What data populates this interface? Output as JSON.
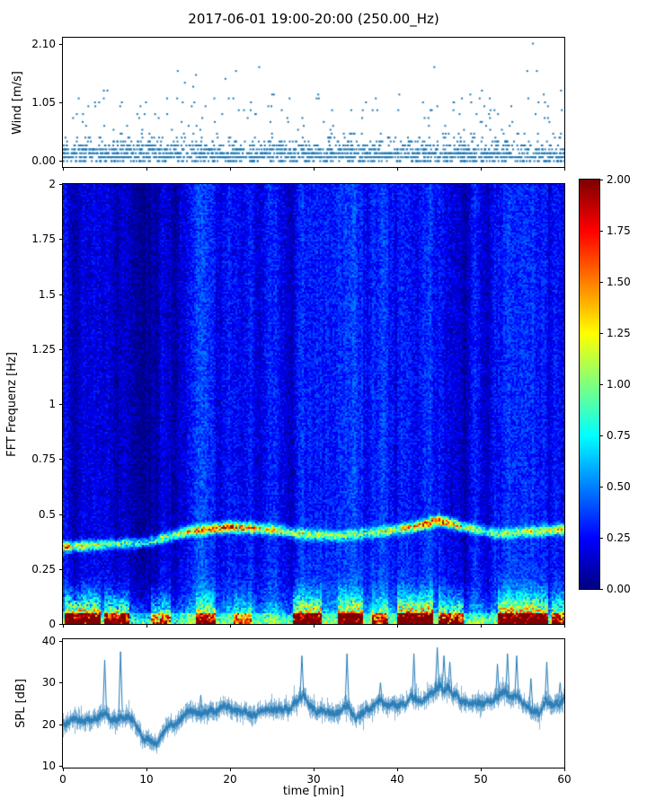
{
  "title": "2017-06-01 19:00-20:00 (250.00_Hz)",
  "colors": {
    "series": "#1f77b4",
    "axis": "#000000",
    "background": "#ffffff"
  },
  "chart_data": [
    {
      "type": "scatter",
      "id": "wind",
      "ylabel": "Wind [m/s]",
      "yticks": [
        0.0,
        1.05,
        2.1
      ],
      "ytick_labels": [
        "0.00",
        "1.05",
        "2.10"
      ],
      "ylim": [
        -0.105,
        2.205
      ],
      "xlim": [
        0,
        60
      ],
      "marker_color": "#1f77b4",
      "n_points": 2000,
      "quantum": 0.07,
      "seed": 7
    },
    {
      "type": "heatmap",
      "id": "spectrogram",
      "ylabel": "FFT Frequenz [Hz]",
      "yticks": [
        0,
        0.25,
        0.5,
        0.75,
        1,
        1.25,
        1.5,
        1.75,
        2
      ],
      "ytick_labels": [
        "0",
        "0.25",
        "0.5",
        "0.75",
        "1",
        "1.25",
        "1.5",
        "1.75",
        "2"
      ],
      "ylim": [
        0,
        2
      ],
      "xlim": [
        0,
        60
      ],
      "clim": [
        0,
        2
      ],
      "colormap": "jet",
      "seed": 13,
      "grid": {
        "nx": 279,
        "ny": 245
      },
      "wave_band": {
        "freq_points": [
          [
            0,
            0.35
          ],
          [
            5,
            0.36
          ],
          [
            10,
            0.37
          ],
          [
            15,
            0.42
          ],
          [
            20,
            0.44
          ],
          [
            25,
            0.43
          ],
          [
            28,
            0.41
          ],
          [
            33,
            0.4
          ],
          [
            38,
            0.42
          ],
          [
            42,
            0.44
          ],
          [
            45,
            0.47
          ],
          [
            48,
            0.44
          ],
          [
            52,
            0.41
          ],
          [
            56,
            0.42
          ],
          [
            60,
            0.43
          ]
        ],
        "width": 0.022,
        "intensity_points": [
          [
            0,
            1.3
          ],
          [
            5,
            0.8
          ],
          [
            10,
            0.7
          ],
          [
            15,
            1.1
          ],
          [
            20,
            1.4
          ],
          [
            25,
            1.0
          ],
          [
            30,
            0.8
          ],
          [
            35,
            0.7
          ],
          [
            40,
            0.9
          ],
          [
            44,
            1.4
          ],
          [
            47,
            1.2
          ],
          [
            50,
            0.7
          ],
          [
            55,
            0.8
          ],
          [
            60,
            1.1
          ]
        ]
      },
      "low_band_bursts": [
        [
          0.3,
          4.6,
          2.1
        ],
        [
          5,
          8,
          1.7
        ],
        [
          10.5,
          13,
          1.3
        ],
        [
          16,
          18.2,
          1.5
        ],
        [
          20.5,
          22.5,
          1.1
        ],
        [
          27.5,
          31,
          1.9
        ],
        [
          33,
          36,
          1.9
        ],
        [
          37,
          39,
          1.2
        ],
        [
          40,
          44.2,
          2.1
        ],
        [
          45,
          48,
          1.5
        ],
        [
          52,
          58,
          2.0
        ],
        [
          58.5,
          60,
          1.5
        ]
      ],
      "low_band_base": 0.6,
      "colorbar": {
        "ticks": [
          0,
          0.25,
          0.5,
          0.75,
          1.0,
          1.25,
          1.5,
          1.75,
          2.0
        ],
        "tick_labels": [
          "0.00",
          "0.25",
          "0.50",
          "0.75",
          "1.00",
          "1.25",
          "1.50",
          "1.75",
          "2.00"
        ]
      }
    },
    {
      "type": "line",
      "id": "spl",
      "ylabel": "SPL [dB]",
      "xlabel": "time [min]",
      "yticks": [
        10,
        20,
        30,
        40
      ],
      "ytick_labels": [
        "10",
        "20",
        "30",
        "40"
      ],
      "ylim": [
        9.5,
        40.5
      ],
      "xlim": [
        0,
        60
      ],
      "xticks": [
        0,
        10,
        20,
        30,
        40,
        50,
        60
      ],
      "xtick_labels": [
        "0",
        "10",
        "20",
        "30",
        "40",
        "50",
        "60"
      ],
      "line_color": "#1f77b4",
      "seed": 99,
      "noise_amp": 1.8,
      "baseline_points": [
        [
          0,
          20.5
        ],
        [
          1,
          21.5
        ],
        [
          2,
          21.8
        ],
        [
          3,
          21.5
        ],
        [
          4,
          22
        ],
        [
          5,
          23
        ],
        [
          6,
          22.5
        ],
        [
          7,
          23
        ],
        [
          8,
          21.5
        ],
        [
          9,
          19.5
        ],
        [
          10,
          17.5
        ],
        [
          11,
          16.5
        ],
        [
          12,
          18.5
        ],
        [
          13,
          21
        ],
        [
          14,
          21
        ],
        [
          15,
          21.5
        ],
        [
          16,
          22
        ],
        [
          17,
          22.5
        ],
        [
          18,
          23.5
        ],
        [
          19,
          23.5
        ],
        [
          20,
          23
        ],
        [
          21,
          22.5
        ],
        [
          22,
          22
        ],
        [
          23,
          22.5
        ],
        [
          24,
          23
        ],
        [
          25,
          23
        ],
        [
          26,
          23.5
        ],
        [
          27,
          24
        ],
        [
          28,
          25.5
        ],
        [
          28.7,
          27
        ],
        [
          29.3,
          25
        ],
        [
          30,
          23.5
        ],
        [
          31,
          22.5
        ],
        [
          32,
          23
        ],
        [
          33,
          23.5
        ],
        [
          34,
          25
        ],
        [
          34.5,
          23.5
        ],
        [
          35,
          22.5
        ],
        [
          36,
          23
        ],
        [
          37,
          24
        ],
        [
          38,
          25.5
        ],
        [
          38.5,
          24.5
        ],
        [
          39,
          23.5
        ],
        [
          40,
          23
        ],
        [
          41,
          23.5
        ],
        [
          42,
          25.5
        ],
        [
          42.5,
          24.5
        ],
        [
          43,
          25.5
        ],
        [
          44,
          27
        ],
        [
          45,
          29.5
        ],
        [
          45.5,
          28.5
        ],
        [
          46,
          29.5
        ],
        [
          46.5,
          28
        ],
        [
          47,
          28.5
        ],
        [
          48,
          26
        ],
        [
          49,
          24.5
        ],
        [
          50,
          24
        ],
        [
          51,
          24.5
        ],
        [
          52,
          26.5
        ],
        [
          53,
          27.5
        ],
        [
          54,
          27.5
        ],
        [
          55,
          25.5
        ],
        [
          56,
          24
        ],
        [
          57,
          23.5
        ],
        [
          57.8,
          26
        ],
        [
          58.5,
          24.5
        ],
        [
          59,
          25
        ],
        [
          60,
          26
        ]
      ],
      "spikes": [
        [
          5,
          35.5
        ],
        [
          6.9,
          37.5
        ],
        [
          16.5,
          27
        ],
        [
          28.6,
          36.5
        ],
        [
          34,
          37
        ],
        [
          38,
          30
        ],
        [
          42,
          37
        ],
        [
          44.8,
          38.5
        ],
        [
          45.6,
          36.5
        ],
        [
          46.3,
          35
        ],
        [
          52,
          34.5
        ],
        [
          53.2,
          37
        ],
        [
          54.3,
          36.5
        ],
        [
          56,
          31
        ],
        [
          57.9,
          35
        ],
        [
          59.5,
          30
        ]
      ]
    }
  ]
}
